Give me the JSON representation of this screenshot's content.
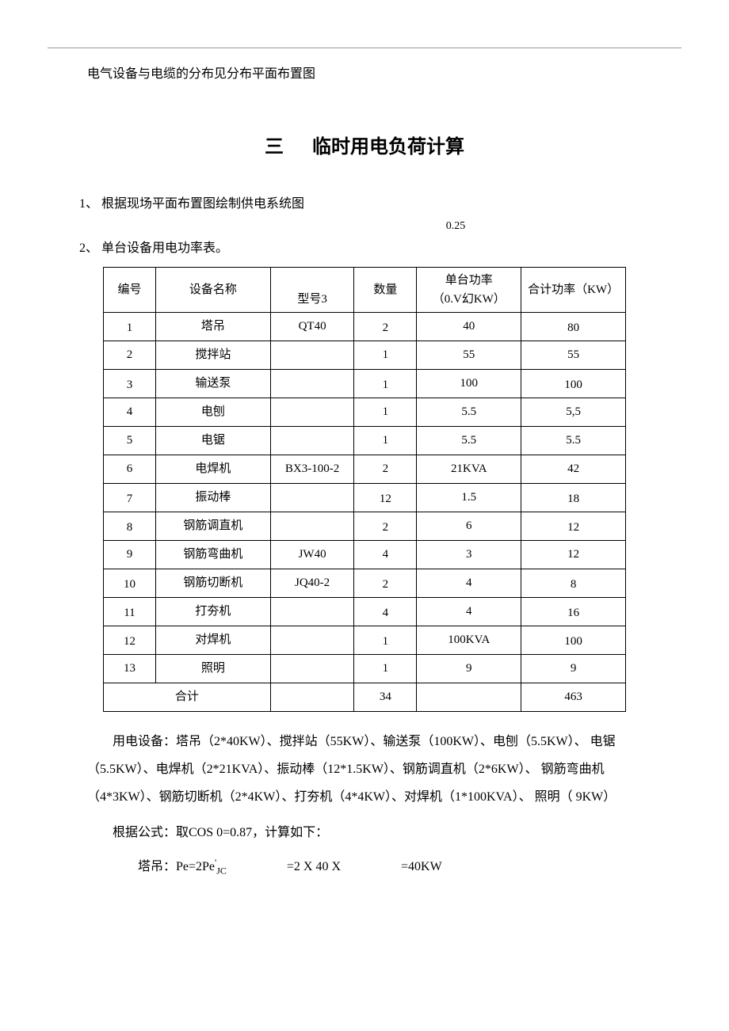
{
  "intro": "电气设备与电缆的分布见分布平面布置图",
  "section": {
    "number": "三",
    "title": "临时用电负荷计算"
  },
  "list1": "1、 根据现场平面布置图绘制供电系统图",
  "note025": "0.25",
  "list2": "2、 单台设备用电功率表。",
  "table": {
    "headers": {
      "c1": "编号",
      "c2": "设备名称",
      "c3": "型号3",
      "c4": "数量",
      "c5_l1": "单台功率",
      "c5_l2": "（0.V幻KW）",
      "c6": "合计功率（KW）"
    },
    "rows": [
      {
        "id": "1",
        "name": "塔吊",
        "model": "QT40",
        "qty": "2",
        "unit": "40",
        "total": "80",
        "vb": true
      },
      {
        "id": "2",
        "name": "搅拌站",
        "model": "",
        "qty": "1",
        "unit": "55",
        "total": "55",
        "vb": false
      },
      {
        "id": "3",
        "name": "输送泵",
        "model": "",
        "qty": "1",
        "unit": "100",
        "total": "100",
        "vb": true
      },
      {
        "id": "4",
        "name": "电刨",
        "model": "",
        "qty": "1",
        "unit": "5.5",
        "total": "5,5",
        "vb": false
      },
      {
        "id": "5",
        "name": "电锯",
        "model": "",
        "qty": "1",
        "unit": "5.5",
        "total": "5.5",
        "vb": false
      },
      {
        "id": "6",
        "name": "电焊机",
        "model": "BX3-100-2",
        "qty": "2",
        "unit": "21KVA",
        "total": "42",
        "vb": false
      },
      {
        "id": "7",
        "name": "振动棒",
        "model": "",
        "qty": "12",
        "unit": "1.5",
        "total": "18",
        "vb": true
      },
      {
        "id": "8",
        "name": "钢筋调直机",
        "model": "",
        "qty": "2",
        "unit": "6",
        "total": "12",
        "vb": true
      },
      {
        "id": "9",
        "name": "钢筋弯曲机",
        "model": "JW40",
        "qty": "4",
        "unit": "3",
        "total": "12",
        "vb": false
      },
      {
        "id": "10",
        "name": "钢筋切断机",
        "model": "JQ40-2",
        "qty": "2",
        "unit": "4",
        "total": "8",
        "vb": true
      },
      {
        "id": "11",
        "name": "打夯机",
        "model": "",
        "qty": "4",
        "unit": "4",
        "total": "16",
        "vb": true
      },
      {
        "id": "12",
        "name": "对焊机",
        "model": "",
        "qty": "1",
        "unit": "100KVA",
        "total": "100",
        "vb": true
      },
      {
        "id": "13",
        "name": "照明",
        "model": "",
        "qty": "1",
        "unit": "9",
        "total": "9",
        "vb": false
      }
    ],
    "footer": {
      "label": "合计",
      "qty": "34",
      "unit": "",
      "total": "463"
    }
  },
  "para1": "用电设备：塔吊（2*40KW）、搅拌站（55KW）、输送泵（100KW）、电刨（5.5KW）、 电锯（5.5KW）、电焊机（2*21KVA）、振动棒（12*1.5KW）、钢筋调直机（2*6KW）、 钢筋弯曲机（4*3KW）、钢筋切断机（2*4KW）、打夯机（4*4KW）、对焊机（1*100KVA）、 照明（ 9KW）",
  "para2": "根据公式：取COS 0=0.87，计算如下：",
  "formula": {
    "prefix": "塔吊：Pe=2Pe",
    "sup": "'",
    "sub": "JC",
    "mid": "=2 Χ 40 Χ",
    "end": "=40KW"
  }
}
